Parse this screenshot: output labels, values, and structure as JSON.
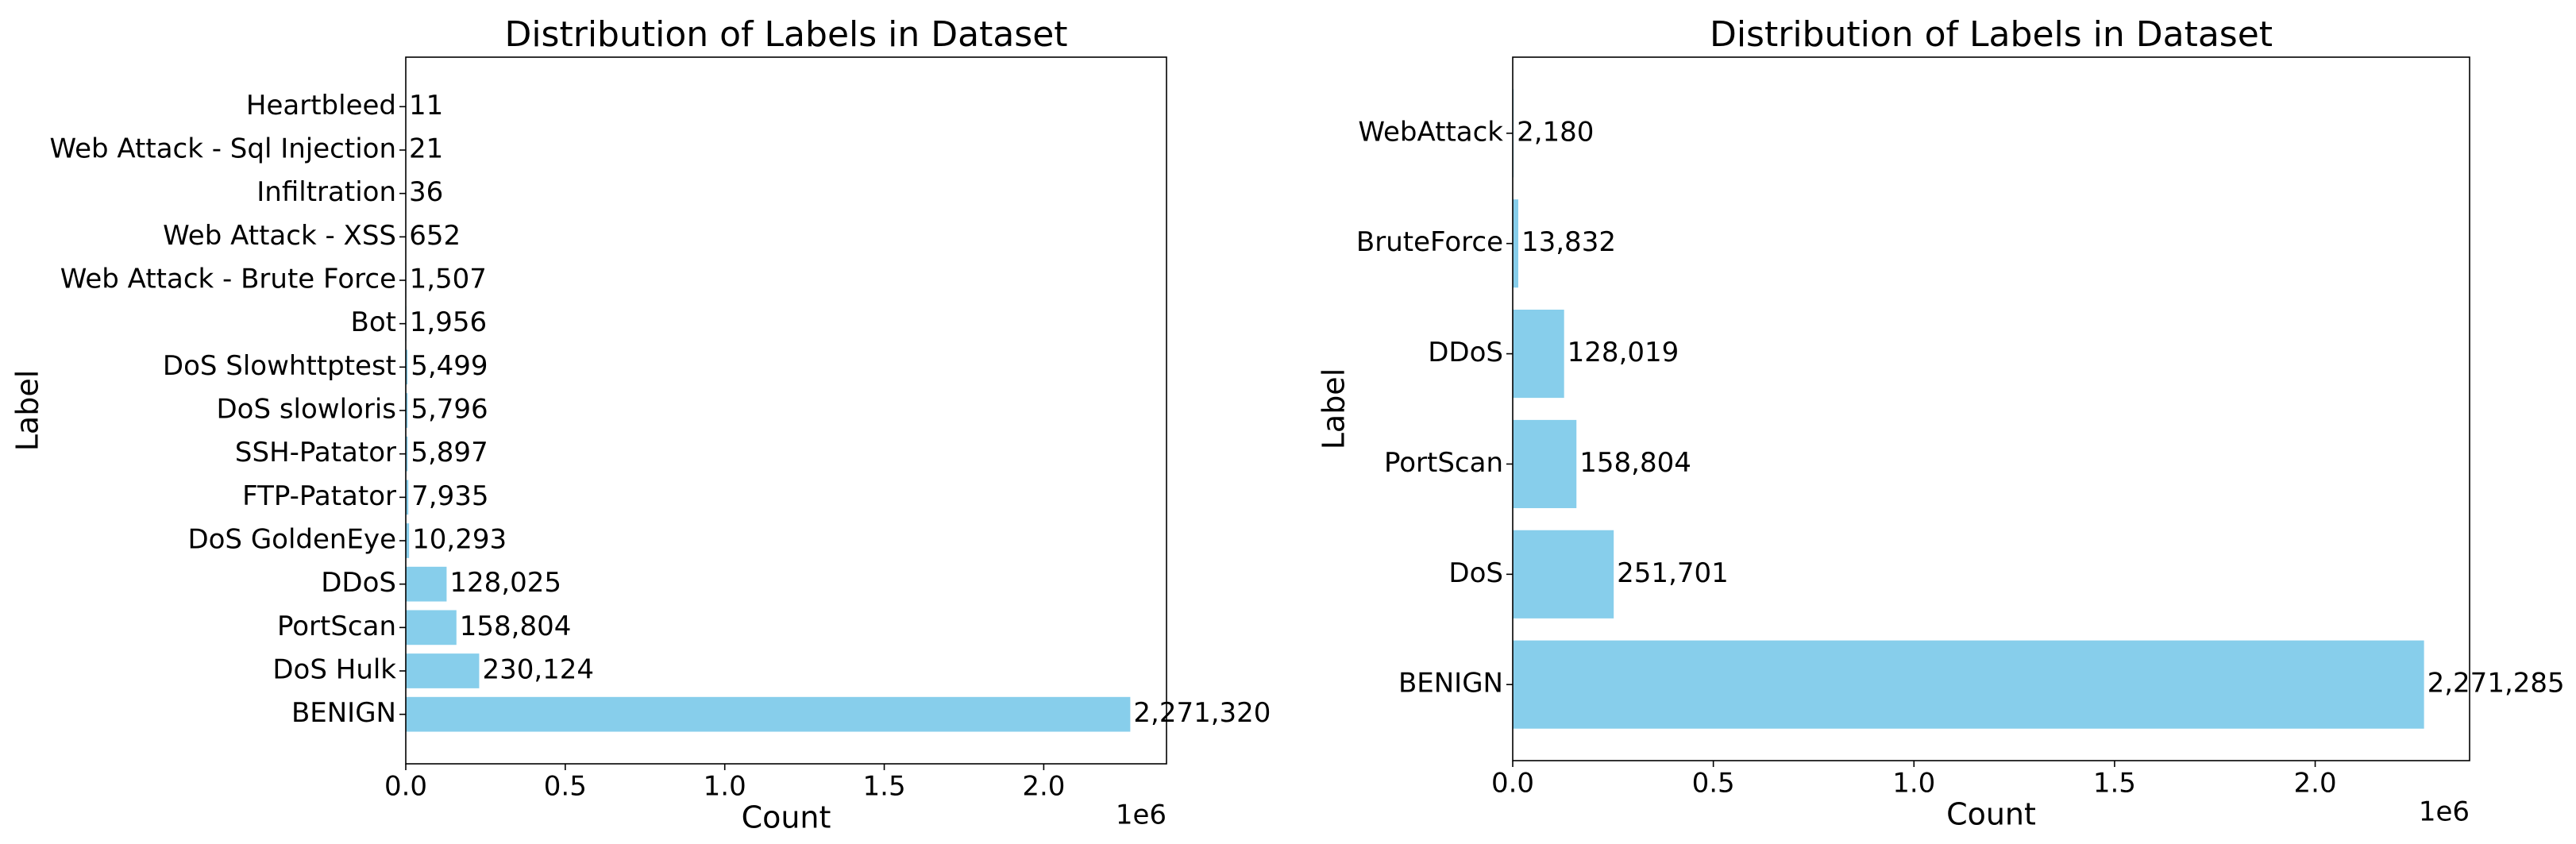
{
  "chart_data": [
    {
      "type": "barh",
      "title": "Distribution of Labels in Dataset",
      "xlabel": "Count",
      "ylabel": "Label",
      "x_offset_label": "1e6",
      "color": "#87ceeb",
      "categories": [
        "BENIGN",
        "DoS Hulk",
        "PortScan",
        "DDoS",
        "DoS GoldenEye",
        "FTP-Patator",
        "SSH-Patator",
        "DoS slowloris",
        "DoS Slowhttptest",
        "Bot",
        "Web Attack - Brute Force",
        "Web Attack - XSS",
        "Infiltration",
        "Web Attack - Sql Injection",
        "Heartbleed"
      ],
      "values": [
        2271320,
        230124,
        158804,
        128025,
        10293,
        7935,
        5897,
        5796,
        5499,
        1956,
        1507,
        652,
        36,
        21,
        11
      ],
      "value_labels": [
        "2,271,320",
        "230,124",
        "158,804",
        "128,025",
        "10,293",
        "7,935",
        "5,897",
        "5,796",
        "5,499",
        "1,956",
        "1,507",
        "652",
        "36",
        "21",
        "11"
      ],
      "xlim": [
        0,
        2384886
      ],
      "xticks": [
        {
          "value": 0,
          "label": "0.0"
        },
        {
          "value": 500000,
          "label": "0.5"
        },
        {
          "value": 1000000,
          "label": "1.0"
        },
        {
          "value": 1500000,
          "label": "1.5"
        },
        {
          "value": 2000000,
          "label": "2.0"
        }
      ]
    },
    {
      "type": "barh",
      "title": "Distribution of Labels in Dataset",
      "xlabel": "Count",
      "ylabel": "Label",
      "x_offset_label": "1e6",
      "color": "#87ceeb",
      "categories": [
        "BENIGN",
        "DoS",
        "PortScan",
        "DDoS",
        "BruteForce",
        "WebAttack"
      ],
      "values": [
        2271285,
        251701,
        158804,
        128019,
        13832,
        2180
      ],
      "value_labels": [
        "2,271,285",
        "251,701",
        "158,804",
        "128,019",
        "13,832",
        "2,180"
      ],
      "xlim": [
        0,
        2384849
      ],
      "xticks": [
        {
          "value": 0,
          "label": "0.0"
        },
        {
          "value": 500000,
          "label": "0.5"
        },
        {
          "value": 1000000,
          "label": "1.0"
        },
        {
          "value": 1500000,
          "label": "1.5"
        },
        {
          "value": 2000000,
          "label": "2.0"
        }
      ]
    }
  ]
}
